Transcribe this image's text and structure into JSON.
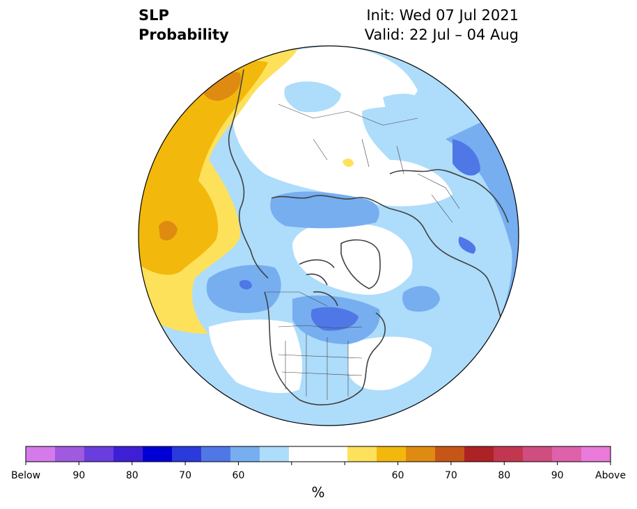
{
  "header": {
    "variable": "SLP",
    "product": "Probability",
    "init": "Init: Wed 07 Jul 2021",
    "valid": "Valid: 22 Jul – 04 Aug"
  },
  "colorbar": {
    "colors": [
      "#d57aeb",
      "#a05ae0",
      "#6b3ddf",
      "#3f1fd6",
      "#0000d6",
      "#2a3adb",
      "#5077e6",
      "#76aef0",
      "#aedcfb",
      "#ffffff",
      "#ffffff",
      "#fee15a",
      "#f3b80c",
      "#df8b12",
      "#c65617",
      "#ae2125",
      "#c2374f",
      "#d04d80",
      "#dd62aa",
      "#e97ada"
    ],
    "tick_labels": [
      "Below",
      "90",
      "80",
      "70",
      "60",
      "",
      "",
      "60",
      "70",
      "80",
      "90",
      "Above"
    ],
    "unit_label": "%"
  },
  "map": {
    "projection": "North polar stereographic",
    "categories": {
      "above_60_65": "#fee15a",
      "above_65_70": "#f3b80c",
      "above_70_75": "#df8b12",
      "below_60_65": "#aedcfb",
      "below_65_70": "#76aef0",
      "below_70_75": "#5077e6",
      "near_normal": "#ffffff"
    },
    "coastline_color": "#404040",
    "border_color": "#000000"
  }
}
